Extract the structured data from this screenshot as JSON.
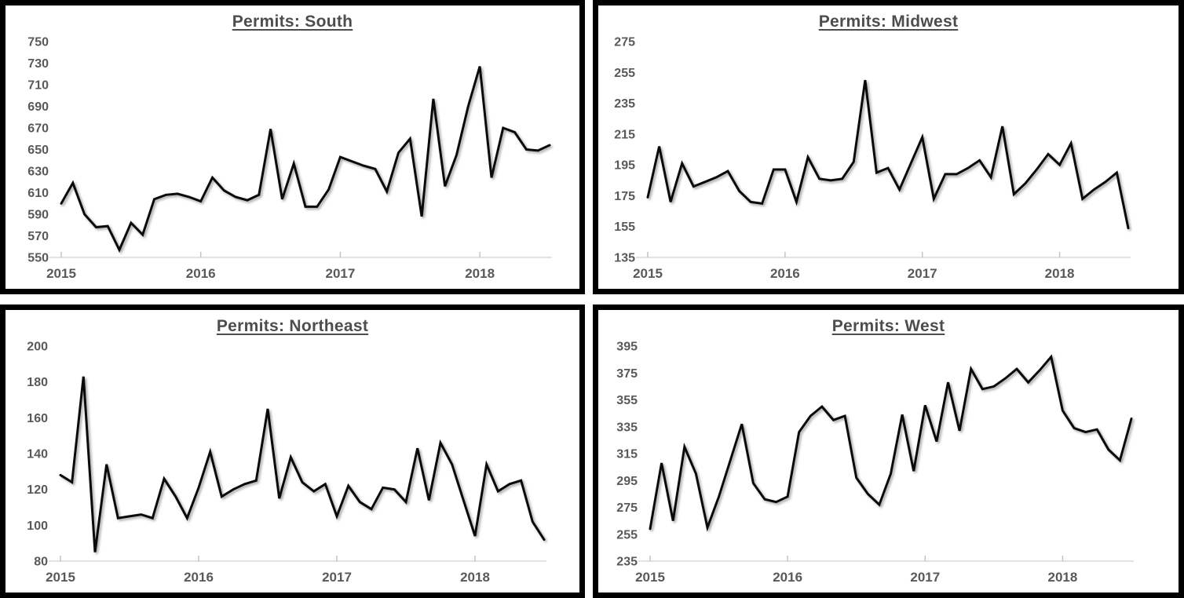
{
  "page": {
    "description": "2x2 grid of monthly line charts of U.S. housing permits by region",
    "background_color": "#ffffff",
    "accent_colors": {
      "series_line": "#0a0a0a",
      "title_text": "#4d4d4d",
      "axis_labels": "#595959",
      "axis_line": "#d9d9d9",
      "panel_border": "#000000"
    }
  },
  "chart_data": [
    {
      "type": "line",
      "region": "South",
      "title": "Permits: South",
      "legend": "none",
      "grid": "off",
      "x_frequency": "monthly",
      "x_start": "2015-01",
      "x_end": "2018-07",
      "x_tick_labels": [
        "2015",
        "2016",
        "2017",
        "2018"
      ],
      "x_tick_month_index": [
        0,
        12,
        24,
        36
      ],
      "ylim": [
        550,
        750
      ],
      "y_ticks": [
        750,
        730,
        710,
        690,
        670,
        650,
        630,
        610,
        590,
        570,
        550
      ],
      "values": [
        600,
        619,
        590,
        578,
        579,
        557,
        582,
        571,
        604,
        608,
        609,
        606,
        602,
        624,
        612,
        606,
        603,
        608,
        669,
        604,
        637,
        597,
        597,
        613,
        643,
        639,
        635,
        632,
        611,
        647,
        660,
        588,
        697,
        616,
        645,
        690,
        727,
        624,
        670,
        666,
        650,
        649,
        654
      ]
    },
    {
      "type": "line",
      "region": "Midwest",
      "title": "Permits: Midwest",
      "legend": "none",
      "grid": "off",
      "x_frequency": "monthly",
      "x_start": "2015-01",
      "x_end": "2018-07",
      "x_tick_labels": [
        "2015",
        "2016",
        "2017",
        "2018"
      ],
      "x_tick_month_index": [
        0,
        12,
        24,
        36
      ],
      "ylim": [
        135,
        275
      ],
      "y_ticks": [
        275,
        255,
        235,
        215,
        195,
        175,
        155,
        135
      ],
      "values": [
        174,
        207,
        171,
        196,
        181,
        184,
        187,
        191,
        178,
        171,
        170,
        192,
        192,
        171,
        200,
        186,
        185,
        186,
        197,
        250,
        190,
        193,
        179,
        196,
        213,
        173,
        189,
        189,
        193,
        198,
        187,
        220,
        176,
        183,
        192,
        202,
        195,
        209,
        173,
        179,
        184,
        190,
        154
      ]
    },
    {
      "type": "line",
      "region": "Northeast",
      "title": "Permits: Northeast",
      "legend": "none",
      "grid": "off",
      "x_frequency": "monthly",
      "x_start": "2015-01",
      "x_end": "2018-07",
      "x_tick_labels": [
        "2015",
        "2016",
        "2017",
        "2018"
      ],
      "x_tick_month_index": [
        0,
        12,
        24,
        36
      ],
      "ylim": [
        80,
        200
      ],
      "y_ticks": [
        200,
        180,
        160,
        140,
        120,
        100,
        80
      ],
      "values": [
        128,
        124,
        183,
        85,
        134,
        104,
        105,
        106,
        104,
        126,
        116,
        104,
        121,
        141,
        116,
        120,
        123,
        125,
        165,
        115,
        138,
        124,
        119,
        123,
        105,
        122,
        113,
        109,
        121,
        120,
        113,
        143,
        114,
        146,
        134,
        114,
        94,
        134,
        119,
        123,
        125,
        102,
        92
      ]
    },
    {
      "type": "line",
      "region": "West",
      "title": "Permits: West",
      "legend": "none",
      "grid": "off",
      "x_frequency": "monthly",
      "x_start": "2015-01",
      "x_end": "2018-07",
      "x_tick_labels": [
        "2015",
        "2016",
        "2017",
        "2018"
      ],
      "x_tick_month_index": [
        0,
        12,
        24,
        36
      ],
      "ylim": [
        235,
        395
      ],
      "y_ticks": [
        395,
        375,
        355,
        335,
        315,
        295,
        275,
        255,
        235
      ],
      "values": [
        259,
        308,
        265,
        320,
        300,
        260,
        283,
        310,
        337,
        293,
        281,
        279,
        283,
        331,
        343,
        350,
        340,
        343,
        297,
        285,
        277,
        300,
        344,
        302,
        351,
        324,
        368,
        332,
        378,
        363,
        365,
        371,
        378,
        368,
        377,
        387,
        347,
        334,
        331,
        333,
        318,
        310,
        341
      ]
    }
  ]
}
